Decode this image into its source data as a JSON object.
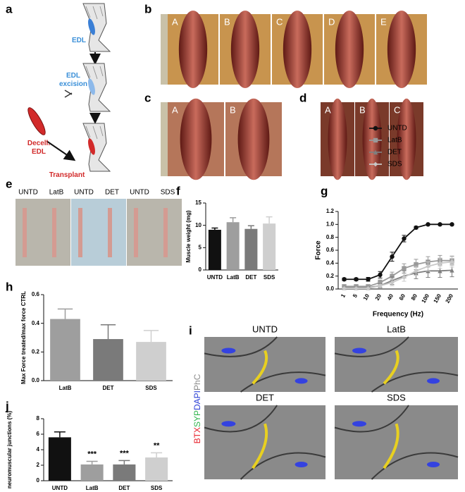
{
  "panel_labels": [
    "a",
    "b",
    "c",
    "d",
    "e",
    "f",
    "g",
    "h",
    "i",
    "j"
  ],
  "schematic": {
    "steps": [
      "EDL",
      "EDL excision",
      "Transplant"
    ],
    "graft": "Decell. EDL"
  },
  "photos_b": [
    "A",
    "B",
    "C",
    "D",
    "E"
  ],
  "photos_c": [
    "A",
    "B"
  ],
  "photos_d": [
    "A",
    "B",
    "C"
  ],
  "photos_e": [
    "UNTD",
    "LatB",
    "UNTD",
    "DET",
    "UNTD",
    "SDS"
  ],
  "stain_panels": {
    "labels": [
      "UNTD",
      "LatB",
      "DET",
      "SDS"
    ],
    "channels": [
      {
        "text": "BTX",
        "color": "#e8202a"
      },
      {
        "text": "SYP",
        "color": "#2db34a"
      },
      {
        "text": "DAPI",
        "color": "#2b3fd6"
      },
      {
        "text": "PhC",
        "color": "#888888"
      }
    ]
  },
  "chart_data": [
    {
      "type": "bar",
      "ylabel": "Muscle weight (mg)",
      "categories": [
        "UNTD",
        "LatB",
        "DET",
        "SDS"
      ],
      "values": [
        9,
        10.7,
        9.2,
        10.4
      ],
      "errors": [
        0.4,
        1,
        0.7,
        1.5
      ],
      "colors": [
        "#111111",
        "#9e9e9e",
        "#7a7a7a",
        "#cfcfcf"
      ],
      "ylim": [
        0,
        15
      ],
      "yticks": [
        0,
        5,
        10,
        15
      ]
    },
    {
      "type": "line",
      "xlabel": "Frequency (Hz)",
      "ylabel": "Force",
      "categories": [
        "1",
        "5",
        "10",
        "20",
        "40",
        "60",
        "80",
        "100",
        "150",
        "200"
      ],
      "series": [
        {
          "name": "UNTD",
          "color": "#111111",
          "marker": "circle",
          "values": [
            0.15,
            0.15,
            0.15,
            0.22,
            0.5,
            0.78,
            0.95,
            1,
            1,
            1
          ],
          "errors": [
            0.02,
            0.02,
            0.03,
            0.05,
            0.07,
            0.05,
            0.02,
            0.01,
            0.01,
            0.01
          ]
        },
        {
          "name": "LatB",
          "color": "#9a9a9a",
          "marker": "square",
          "values": [
            0.04,
            0.04,
            0.04,
            0.1,
            0.2,
            0.32,
            0.38,
            0.42,
            0.44,
            0.44
          ],
          "errors": [
            0.01,
            0.01,
            0.02,
            0.04,
            0.06,
            0.07,
            0.08,
            0.08,
            0.08,
            0.07
          ]
        },
        {
          "name": "DET",
          "color": "#7f7f7f",
          "marker": "triangle",
          "values": [
            0.02,
            0.02,
            0.02,
            0.05,
            0.13,
            0.2,
            0.25,
            0.28,
            0.28,
            0.29
          ],
          "errors": [
            0.01,
            0.01,
            0.01,
            0.03,
            0.06,
            0.08,
            0.09,
            0.1,
            0.1,
            0.1
          ]
        },
        {
          "name": "SDS",
          "color": "#c8c8c8",
          "marker": "diamond",
          "values": [
            0.01,
            0.01,
            0.01,
            0.05,
            0.1,
            0.18,
            0.28,
            0.35,
            0.4,
            0.42
          ],
          "errors": [
            0.01,
            0.01,
            0.01,
            0.02,
            0.05,
            0.06,
            0.07,
            0.07,
            0.08,
            0.08
          ]
        }
      ],
      "ylim": [
        0,
        1.2
      ],
      "yticks": [
        {
          "value": 0,
          "label": "0.0"
        },
        0.2,
        0.4,
        0.6,
        0.8,
        {
          "value": 1,
          "label": "1.0"
        },
        1.2
      ],
      "legend": "top-right"
    },
    {
      "type": "bar",
      "ylabel": "Max Force treated/max force CTRL",
      "categories": [
        "LatB",
        "DET",
        "SDS"
      ],
      "values": [
        0.43,
        0.29,
        0.27
      ],
      "errors": [
        0.07,
        0.1,
        0.08
      ],
      "colors": [
        "#9e9e9e",
        "#7a7a7a",
        "#cfcfcf"
      ],
      "ylim": [
        0,
        0.6
      ],
      "yticks": [
        {
          "value": 0,
          "label": "0.0"
        },
        0.2,
        0.4,
        0.6
      ]
    },
    {
      "type": "bar",
      "ylabel": "neuromuscular junctions (%)",
      "categories": [
        "UNTD",
        "LatB",
        "DET",
        "SDS"
      ],
      "values": [
        5.6,
        2.1,
        2.1,
        3
      ],
      "errors": [
        0.7,
        0.4,
        0.5,
        0.6
      ],
      "colors": [
        "#111111",
        "#9e9e9e",
        "#7a7a7a",
        "#cfcfcf"
      ],
      "significance": [
        null,
        "***",
        "***",
        "**"
      ],
      "ylim": [
        0,
        8
      ],
      "yticks": [
        0,
        2,
        4,
        6,
        8
      ]
    }
  ]
}
